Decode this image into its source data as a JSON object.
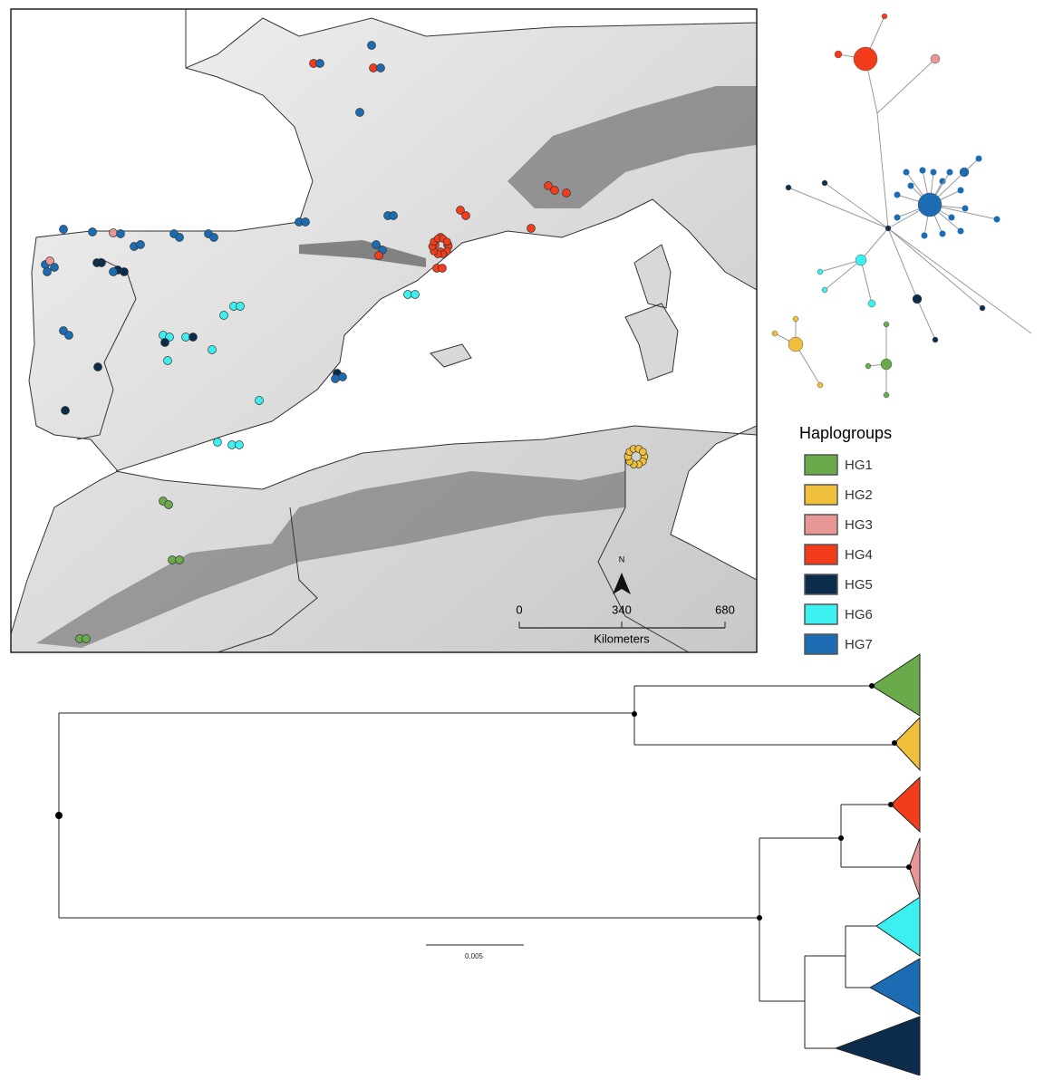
{
  "map": {
    "scale_bar": {
      "ticks": [
        "0",
        "340",
        "680"
      ],
      "unit": "Kilometers"
    },
    "north_label": "N"
  },
  "legend": {
    "title": "Haplogroups",
    "items": [
      {
        "label": "HG1",
        "color": "#6aaa4a"
      },
      {
        "label": "HG2",
        "color": "#f0bf3c"
      },
      {
        "label": "HG3",
        "color": "#e89696"
      },
      {
        "label": "HG4",
        "color": "#f23c1c"
      },
      {
        "label": "HG5",
        "color": "#0c2c4c"
      },
      {
        "label": "HG6",
        "color": "#3cf0f2"
      },
      {
        "label": "HG7",
        "color": "#1c6cb4"
      }
    ]
  },
  "tree": {
    "scale_label": "0.005"
  }
}
